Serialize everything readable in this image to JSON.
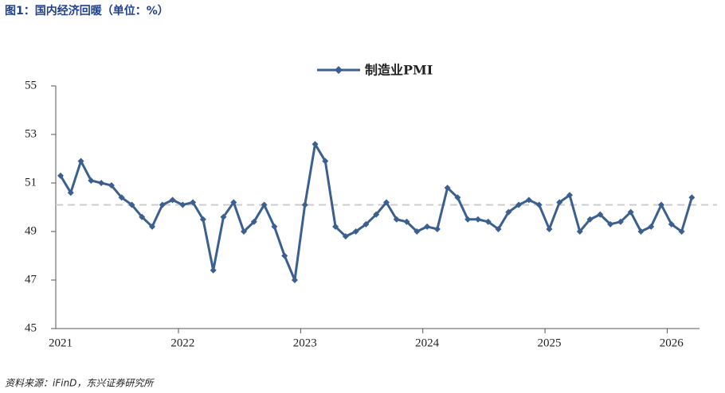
{
  "chart_data": {
    "type": "line",
    "title": "图1：国内经济回暖（单位：%）",
    "source": "资料来源：iFinD，东兴证券研究所",
    "categories": [
      "2021",
      null,
      null,
      null,
      null,
      null,
      null,
      null,
      null,
      null,
      null,
      null,
      "2022",
      null,
      null,
      null,
      null,
      null,
      null,
      null,
      null,
      null,
      null,
      null,
      "2023",
      null,
      null,
      null,
      null,
      null,
      null,
      null,
      null,
      null,
      null,
      null,
      "2024",
      null,
      null,
      null,
      null,
      null,
      null,
      null,
      null,
      null,
      null,
      null,
      "2025",
      null,
      null,
      null,
      null,
      null,
      null,
      null,
      null,
      null,
      null,
      null,
      "2026",
      null,
      null
    ],
    "series": [
      {
        "name": "制造业PMI",
        "color": "#3b5f8f",
        "values": [
          51.3,
          50.6,
          51.9,
          51.1,
          51.0,
          50.9,
          50.4,
          50.1,
          49.6,
          49.2,
          50.1,
          50.3,
          50.1,
          50.2,
          49.5,
          47.4,
          49.6,
          50.2,
          49.0,
          49.4,
          50.1,
          49.2,
          48.0,
          47.0,
          50.1,
          52.6,
          51.9,
          49.2,
          48.8,
          49.0,
          49.3,
          49.7,
          50.2,
          49.5,
          49.4,
          49.0,
          49.2,
          49.1,
          50.8,
          50.4,
          49.5,
          49.5,
          49.4,
          49.1,
          49.8,
          50.1,
          50.3,
          50.1,
          49.1,
          50.2,
          50.5,
          49.0,
          49.5,
          49.7,
          49.3,
          49.4,
          49.8,
          49.0,
          49.2,
          50.1,
          49.3,
          49.0,
          50.4
        ]
      }
    ],
    "reference_line": 50.1,
    "ylim": [
      45,
      55
    ],
    "yticks": [
      45,
      47,
      49,
      51,
      53,
      55
    ]
  }
}
